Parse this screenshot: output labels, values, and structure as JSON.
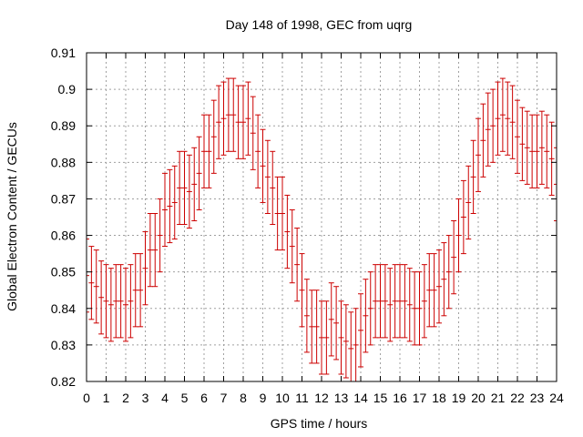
{
  "chart_data": {
    "type": "scatter",
    "style": "errorbars",
    "title": "Day 148 of 1998, GEC from uqrg",
    "xlabel": "GPS time / hours",
    "ylabel": "Global Electron Content / GECUs",
    "xlim": [
      0,
      24
    ],
    "ylim": [
      0.82,
      0.91
    ],
    "grid": true,
    "x_ticks": [
      0,
      1,
      2,
      3,
      4,
      5,
      6,
      7,
      8,
      9,
      10,
      11,
      12,
      13,
      14,
      15,
      16,
      17,
      18,
      19,
      20,
      21,
      22,
      23,
      24
    ],
    "y_ticks": [
      0.82,
      0.83,
      0.84,
      0.85,
      0.86,
      0.87,
      0.88,
      0.89,
      0.9,
      0.91
    ],
    "y_tick_labels": [
      "0.82",
      "0.83",
      "0.84",
      "0.85",
      "0.86",
      "0.87",
      "0.88",
      "0.89",
      "0.9",
      "0.91"
    ],
    "error": 0.01,
    "series": [
      {
        "name": "GEC",
        "color": "#cc0000",
        "x": [
          0.0,
          0.25,
          0.5,
          0.75,
          1.0,
          1.25,
          1.5,
          1.75,
          2.0,
          2.25,
          2.5,
          2.75,
          3.0,
          3.25,
          3.5,
          3.75,
          4.0,
          4.25,
          4.5,
          4.75,
          5.0,
          5.25,
          5.5,
          5.75,
          6.0,
          6.25,
          6.5,
          6.75,
          7.0,
          7.25,
          7.5,
          7.75,
          8.0,
          8.25,
          8.5,
          8.75,
          9.0,
          9.25,
          9.5,
          9.75,
          10.0,
          10.25,
          10.5,
          10.75,
          11.0,
          11.25,
          11.5,
          11.75,
          12.0,
          12.25,
          12.5,
          12.75,
          13.0,
          13.25,
          13.5,
          13.75,
          14.0,
          14.25,
          14.5,
          14.75,
          15.0,
          15.25,
          15.5,
          15.75,
          16.0,
          16.25,
          16.5,
          16.75,
          17.0,
          17.25,
          17.5,
          17.75,
          18.0,
          18.25,
          18.5,
          18.75,
          19.0,
          19.25,
          19.5,
          19.75,
          20.0,
          20.25,
          20.5,
          20.75,
          21.0,
          21.25,
          21.5,
          21.75,
          22.0,
          22.25,
          22.5,
          22.75,
          23.0,
          23.25,
          23.5,
          23.75,
          24.0
        ],
        "values": [
          0.849,
          0.847,
          0.846,
          0.843,
          0.842,
          0.841,
          0.842,
          0.842,
          0.841,
          0.842,
          0.845,
          0.845,
          0.851,
          0.856,
          0.856,
          0.86,
          0.867,
          0.868,
          0.869,
          0.873,
          0.873,
          0.872,
          0.874,
          0.877,
          0.883,
          0.883,
          0.887,
          0.891,
          0.892,
          0.893,
          0.893,
          0.891,
          0.891,
          0.892,
          0.888,
          0.883,
          0.879,
          0.876,
          0.873,
          0.866,
          0.866,
          0.861,
          0.857,
          0.852,
          0.845,
          0.838,
          0.835,
          0.835,
          0.832,
          0.832,
          0.837,
          0.836,
          0.832,
          0.831,
          0.829,
          0.83,
          0.834,
          0.838,
          0.84,
          0.842,
          0.842,
          0.842,
          0.841,
          0.842,
          0.842,
          0.842,
          0.841,
          0.84,
          0.84,
          0.842,
          0.845,
          0.845,
          0.846,
          0.848,
          0.85,
          0.854,
          0.86,
          0.865,
          0.869,
          0.876,
          0.882,
          0.886,
          0.889,
          0.89,
          0.892,
          0.893,
          0.892,
          0.891,
          0.887,
          0.885,
          0.884,
          0.883,
          0.883,
          0.884,
          0.883,
          0.881,
          0.874
        ]
      }
    ]
  }
}
